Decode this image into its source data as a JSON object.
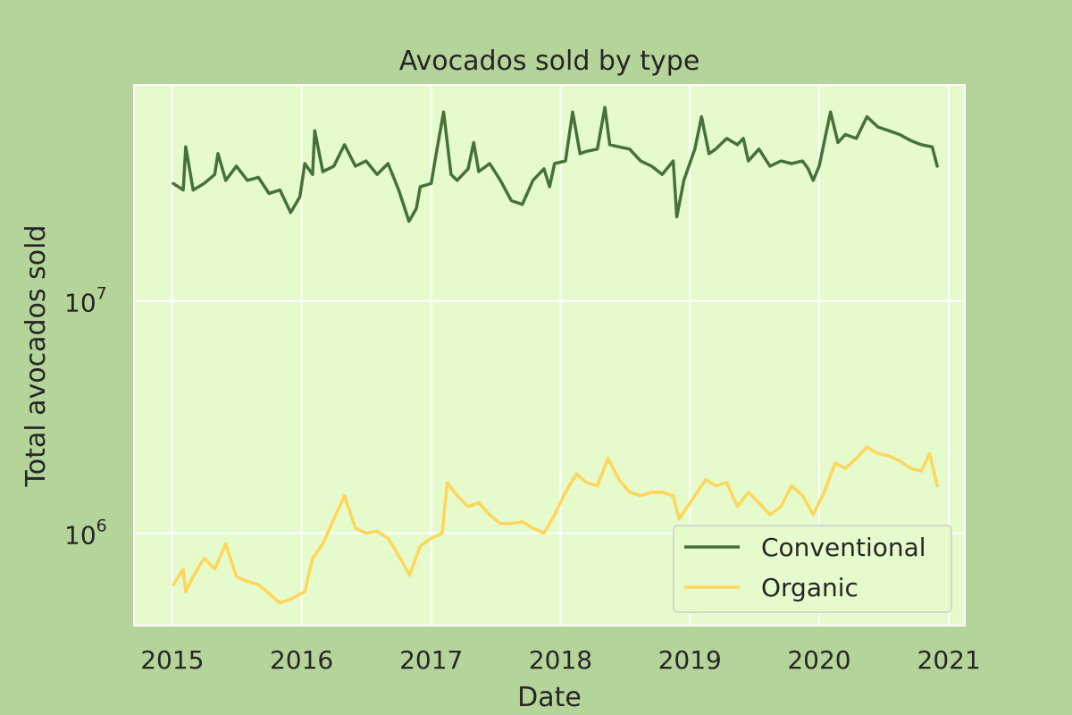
{
  "colors": {
    "figure_background": "#b5d49a",
    "plot_background": "#e6fbcb",
    "grid": "#ffffff",
    "text": "#262626",
    "conventional": "#48703a",
    "organic": "#ffd65a"
  },
  "chart_data": {
    "type": "line",
    "title": "Avocados sold by type",
    "xlabel": "Date",
    "ylabel": "Total avocados sold",
    "x_type": "date",
    "y_scale": "log",
    "ylim": [
      400000,
      85000000
    ],
    "xlim": [
      "2014-09-15",
      "2021-02-15"
    ],
    "grid": true,
    "legend": {
      "position": "lower-right",
      "entries": [
        "Conventional",
        "Organic"
      ]
    },
    "x_ticks": [
      {
        "value": "2015-01-01",
        "label": "2015"
      },
      {
        "value": "2016-01-01",
        "label": "2016"
      },
      {
        "value": "2017-01-01",
        "label": "2017"
      },
      {
        "value": "2018-01-01",
        "label": "2018"
      },
      {
        "value": "2019-01-01",
        "label": "2019"
      },
      {
        "value": "2020-01-01",
        "label": "2020"
      },
      {
        "value": "2021-01-01",
        "label": "2021"
      }
    ],
    "y_ticks": [
      {
        "value": 1000000,
        "base": "10",
        "exponent": "6"
      },
      {
        "value": 10000000,
        "base": "10",
        "exponent": "7"
      }
    ],
    "series": [
      {
        "name": "Conventional",
        "points": [
          [
            "2015-01-04",
            32000000
          ],
          [
            "2015-02-01",
            30000000
          ],
          [
            "2015-02-08",
            46000000
          ],
          [
            "2015-03-01",
            30000000
          ],
          [
            "2015-04-01",
            32000000
          ],
          [
            "2015-05-01",
            35000000
          ],
          [
            "2015-05-10",
            43000000
          ],
          [
            "2015-06-01",
            33000000
          ],
          [
            "2015-07-01",
            38000000
          ],
          [
            "2015-08-01",
            33000000
          ],
          [
            "2015-09-01",
            34000000
          ],
          [
            "2015-10-01",
            29000000
          ],
          [
            "2015-11-01",
            30000000
          ],
          [
            "2015-12-01",
            24000000
          ],
          [
            "2015-12-27",
            28000000
          ],
          [
            "2016-01-10",
            39000000
          ],
          [
            "2016-02-01",
            35000000
          ],
          [
            "2016-02-07",
            54000000
          ],
          [
            "2016-03-01",
            36000000
          ],
          [
            "2016-04-01",
            38000000
          ],
          [
            "2016-05-01",
            47000000
          ],
          [
            "2016-06-01",
            38000000
          ],
          [
            "2016-07-01",
            40000000
          ],
          [
            "2016-08-01",
            35000000
          ],
          [
            "2016-09-01",
            39000000
          ],
          [
            "2016-10-01",
            30000000
          ],
          [
            "2016-10-30",
            22000000
          ],
          [
            "2016-11-20",
            25000000
          ],
          [
            "2016-12-01",
            31000000
          ],
          [
            "2017-01-01",
            32000000
          ],
          [
            "2017-01-15",
            43000000
          ],
          [
            "2017-02-05",
            65000000
          ],
          [
            "2017-02-26",
            35000000
          ],
          [
            "2017-03-15",
            33000000
          ],
          [
            "2017-04-15",
            37000000
          ],
          [
            "2017-05-01",
            48000000
          ],
          [
            "2017-05-15",
            36000000
          ],
          [
            "2017-06-15",
            39000000
          ],
          [
            "2017-07-15",
            33000000
          ],
          [
            "2017-08-15",
            27000000
          ],
          [
            "2017-09-15",
            26000000
          ],
          [
            "2017-10-15",
            33000000
          ],
          [
            "2017-11-15",
            37000000
          ],
          [
            "2017-12-01",
            31000000
          ],
          [
            "2017-12-15",
            39000000
          ],
          [
            "2018-01-15",
            40000000
          ],
          [
            "2018-02-04",
            65000000
          ],
          [
            "2018-02-25",
            43000000
          ],
          [
            "2018-03-15",
            44000000
          ],
          [
            "2018-04-15",
            45000000
          ],
          [
            "2018-05-06",
            68000000
          ],
          [
            "2018-05-20",
            47000000
          ],
          [
            "2018-06-15",
            46000000
          ],
          [
            "2018-07-15",
            45000000
          ],
          [
            "2018-08-15",
            40000000
          ],
          [
            "2018-09-15",
            38000000
          ],
          [
            "2018-10-15",
            35000000
          ],
          [
            "2018-11-15",
            40000000
          ],
          [
            "2018-11-25",
            23000000
          ],
          [
            "2018-12-15",
            33000000
          ],
          [
            "2019-01-15",
            45000000
          ],
          [
            "2019-02-03",
            62000000
          ],
          [
            "2019-02-24",
            43000000
          ],
          [
            "2019-03-15",
            45000000
          ],
          [
            "2019-04-15",
            50000000
          ],
          [
            "2019-05-15",
            47000000
          ],
          [
            "2019-06-01",
            50000000
          ],
          [
            "2019-06-15",
            40000000
          ],
          [
            "2019-07-15",
            45000000
          ],
          [
            "2019-08-15",
            38000000
          ],
          [
            "2019-09-15",
            40000000
          ],
          [
            "2019-10-15",
            39000000
          ],
          [
            "2019-11-15",
            40000000
          ],
          [
            "2019-12-01",
            37000000
          ],
          [
            "2019-12-15",
            33000000
          ],
          [
            "2020-01-01",
            38000000
          ],
          [
            "2020-02-02",
            65000000
          ],
          [
            "2020-02-23",
            48000000
          ],
          [
            "2020-03-15",
            52000000
          ],
          [
            "2020-04-15",
            50000000
          ],
          [
            "2020-05-15",
            62000000
          ],
          [
            "2020-06-15",
            56000000
          ],
          [
            "2020-07-15",
            54000000
          ],
          [
            "2020-08-15",
            52000000
          ],
          [
            "2020-09-15",
            49000000
          ],
          [
            "2020-10-15",
            47000000
          ],
          [
            "2020-11-15",
            46000000
          ],
          [
            "2020-11-29",
            38000000
          ]
        ]
      },
      {
        "name": "Organic",
        "points": [
          [
            "2015-01-04",
            600000
          ],
          [
            "2015-02-01",
            700000
          ],
          [
            "2015-02-08",
            560000
          ],
          [
            "2015-03-01",
            650000
          ],
          [
            "2015-04-01",
            780000
          ],
          [
            "2015-05-01",
            700000
          ],
          [
            "2015-06-01",
            900000
          ],
          [
            "2015-07-01",
            650000
          ],
          [
            "2015-08-01",
            620000
          ],
          [
            "2015-09-01",
            600000
          ],
          [
            "2015-10-01",
            550000
          ],
          [
            "2015-11-01",
            500000
          ],
          [
            "2015-12-01",
            520000
          ],
          [
            "2016-01-10",
            560000
          ],
          [
            "2016-02-01",
            780000
          ],
          [
            "2016-03-01",
            900000
          ],
          [
            "2016-04-01",
            1150000
          ],
          [
            "2016-05-01",
            1450000
          ],
          [
            "2016-06-01",
            1050000
          ],
          [
            "2016-07-01",
            1000000
          ],
          [
            "2016-08-01",
            1020000
          ],
          [
            "2016-09-01",
            950000
          ],
          [
            "2016-10-01",
            800000
          ],
          [
            "2016-11-01",
            660000
          ],
          [
            "2016-12-01",
            880000
          ],
          [
            "2017-01-01",
            950000
          ],
          [
            "2017-02-01",
            1000000
          ],
          [
            "2017-02-15",
            1650000
          ],
          [
            "2017-03-15",
            1450000
          ],
          [
            "2017-04-15",
            1300000
          ],
          [
            "2017-05-15",
            1350000
          ],
          [
            "2017-06-15",
            1200000
          ],
          [
            "2017-07-15",
            1100000
          ],
          [
            "2017-08-15",
            1100000
          ],
          [
            "2017-09-15",
            1120000
          ],
          [
            "2017-10-15",
            1050000
          ],
          [
            "2017-11-15",
            1000000
          ],
          [
            "2017-12-15",
            1200000
          ],
          [
            "2018-01-15",
            1500000
          ],
          [
            "2018-02-15",
            1800000
          ],
          [
            "2018-03-15",
            1650000
          ],
          [
            "2018-04-15",
            1600000
          ],
          [
            "2018-05-15",
            2100000
          ],
          [
            "2018-06-15",
            1700000
          ],
          [
            "2018-07-15",
            1500000
          ],
          [
            "2018-08-15",
            1450000
          ],
          [
            "2018-09-15",
            1500000
          ],
          [
            "2018-10-15",
            1500000
          ],
          [
            "2018-11-15",
            1450000
          ],
          [
            "2018-12-01",
            1150000
          ],
          [
            "2019-01-15",
            1450000
          ],
          [
            "2019-02-15",
            1700000
          ],
          [
            "2019-03-15",
            1600000
          ],
          [
            "2019-04-15",
            1650000
          ],
          [
            "2019-05-15",
            1300000
          ],
          [
            "2019-06-15",
            1500000
          ],
          [
            "2019-07-15",
            1350000
          ],
          [
            "2019-08-15",
            1200000
          ],
          [
            "2019-09-15",
            1300000
          ],
          [
            "2019-10-15",
            1600000
          ],
          [
            "2019-11-15",
            1450000
          ],
          [
            "2019-12-15",
            1200000
          ],
          [
            "2020-01-15",
            1500000
          ],
          [
            "2020-02-15",
            2000000
          ],
          [
            "2020-03-15",
            1900000
          ],
          [
            "2020-04-15",
            2100000
          ],
          [
            "2020-05-15",
            2350000
          ],
          [
            "2020-06-15",
            2200000
          ],
          [
            "2020-07-15",
            2150000
          ],
          [
            "2020-08-15",
            2050000
          ],
          [
            "2020-09-15",
            1900000
          ],
          [
            "2020-10-15",
            1850000
          ],
          [
            "2020-11-08",
            2200000
          ],
          [
            "2020-11-29",
            1600000
          ]
        ]
      }
    ]
  }
}
